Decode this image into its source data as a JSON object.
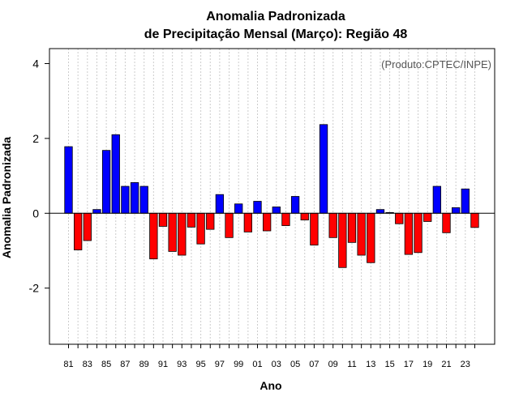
{
  "chart_data": {
    "type": "bar",
    "title_line1": "Anomalia Padronizada",
    "title_line2": "de Precipitação Mensal (Março): Região 48",
    "xlabel": "Ano",
    "ylabel": "Anomalia Padronizada",
    "credit": "(Produto:CPTEC/INPE)",
    "ylim": [
      -3.5,
      4.4
    ],
    "yticks": [
      -2,
      0,
      2,
      4
    ],
    "ytick_labels": [
      "-2",
      "0",
      "2",
      "4"
    ],
    "grid": "vertical dotted",
    "positive_color": "#0000ff",
    "negative_color": "#ff0000",
    "categories": [
      "1981",
      "1982",
      "1983",
      "1984",
      "1985",
      "1986",
      "1987",
      "1988",
      "1989",
      "1990",
      "1991",
      "1992",
      "1993",
      "1994",
      "1995",
      "1996",
      "1997",
      "1998",
      "1999",
      "2000",
      "2001",
      "2002",
      "2003",
      "2004",
      "2005",
      "2006",
      "2007",
      "2008",
      "2009",
      "2010",
      "2011",
      "2012",
      "2013",
      "2014",
      "2015",
      "2016",
      "2017",
      "2018",
      "2019",
      "2020",
      "2021",
      "2022",
      "2023",
      "2024"
    ],
    "x_tick_labels": [
      "81",
      "",
      "83",
      "",
      "85",
      "",
      "87",
      "",
      "89",
      "",
      "91",
      "",
      "93",
      "",
      "95",
      "",
      "97",
      "",
      "99",
      "",
      "01",
      "",
      "03",
      "",
      "05",
      "",
      "07",
      "",
      "09",
      "",
      "11",
      "",
      "13",
      "",
      "15",
      "",
      "17",
      "",
      "19",
      "",
      "21",
      "",
      "23",
      ""
    ],
    "values": [
      1.78,
      -0.98,
      -0.73,
      0.1,
      1.68,
      2.1,
      0.72,
      0.82,
      0.72,
      -1.22,
      -0.35,
      -1.02,
      -1.12,
      -0.37,
      -0.82,
      -0.43,
      0.5,
      -0.65,
      0.25,
      -0.5,
      0.32,
      -0.47,
      0.17,
      -0.33,
      0.45,
      -0.18,
      -0.85,
      2.37,
      -0.65,
      -1.45,
      -0.78,
      -1.12,
      -1.32,
      0.1,
      0.02,
      -0.28,
      -1.1,
      -1.05,
      -0.22,
      0.72,
      -0.52,
      0.15,
      0.65,
      -0.38
    ]
  }
}
